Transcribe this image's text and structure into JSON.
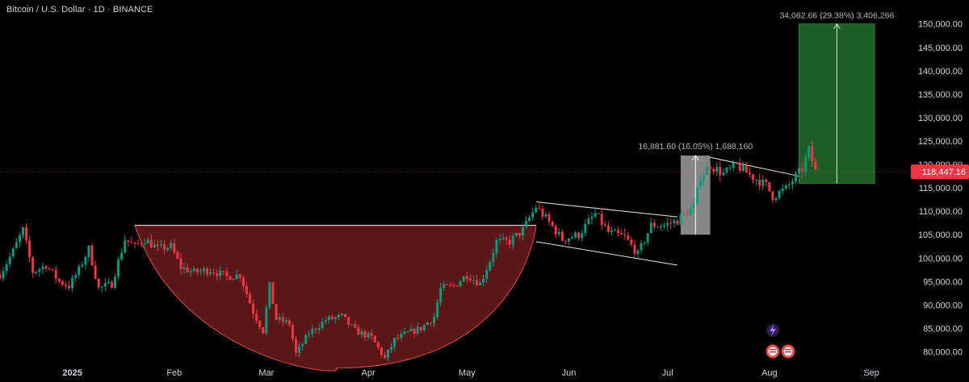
{
  "header": {
    "title": "Bitcoin / U.S. Dollar · 1D · BINANCE"
  },
  "chart_data": {
    "type": "candlestick",
    "symbol": "Bitcoin / U.S. Dollar",
    "interval": "1D",
    "exchange": "BINANCE",
    "ylim": [
      77500,
      151500
    ],
    "y_ticks": [
      "150,000.00",
      "145,000.00",
      "140,000.00",
      "135,000.00",
      "130,000.00",
      "125,000.00",
      "120,000.00",
      "115,000.00",
      "110,000.00",
      "105,000.00",
      "100,000.00",
      "95,000.00",
      "90,000.00",
      "85,000.00",
      "80,000.00"
    ],
    "y_tick_values": [
      150000,
      145000,
      140000,
      135000,
      130000,
      125000,
      120000,
      115000,
      110000,
      105000,
      100000,
      95000,
      90000,
      85000,
      80000
    ],
    "x_ticks": [
      "2025",
      "Feb",
      "Mar",
      "Apr",
      "May",
      "Jun",
      "Jul",
      "Aug",
      "Sep"
    ],
    "x_tick_dates": [
      "2025-01-01",
      "2025-02-01",
      "2025-03-01",
      "2025-04-01",
      "2025-05-01",
      "2025-06-01",
      "2025-07-01",
      "2025-08-01",
      "2025-09-01"
    ],
    "date_start": "2024-12-10",
    "date_end": "2025-09-13",
    "last_price": "118,447.16",
    "last_price_value": 118447.16,
    "colors": {
      "up": "#089981",
      "down": "#f23645",
      "background": "#000000",
      "cup_fill": "#6b1a1c",
      "target_fill": "#1e5e25",
      "range_fill": "#9e9e9e"
    },
    "closes": [
      [
        "2024-12-10",
        96500
      ],
      [
        "2024-12-14",
        101500
      ],
      [
        "2024-12-17",
        106000
      ],
      [
        "2024-12-20",
        97000
      ],
      [
        "2024-12-24",
        98500
      ],
      [
        "2024-12-28",
        95000
      ],
      [
        "2024-12-31",
        94000
      ],
      [
        "2025-01-03",
        97500
      ],
      [
        "2025-01-06",
        102000
      ],
      [
        "2025-01-09",
        93500
      ],
      [
        "2025-01-13",
        94500
      ],
      [
        "2025-01-17",
        104000
      ],
      [
        "2025-01-20",
        102500
      ],
      [
        "2025-01-23",
        104000
      ],
      [
        "2025-01-27",
        102000
      ],
      [
        "2025-01-31",
        102500
      ],
      [
        "2025-02-03",
        98000
      ],
      [
        "2025-02-07",
        97000
      ],
      [
        "2025-02-12",
        97500
      ],
      [
        "2025-02-17",
        96000
      ],
      [
        "2025-02-21",
        96500
      ],
      [
        "2025-02-25",
        88500
      ],
      [
        "2025-02-28",
        84500
      ],
      [
        "2025-03-02",
        94000
      ],
      [
        "2025-03-04",
        87000
      ],
      [
        "2025-03-08",
        86000
      ],
      [
        "2025-03-10",
        79500
      ],
      [
        "2025-03-14",
        84000
      ],
      [
        "2025-03-19",
        86800
      ],
      [
        "2025-03-24",
        87500
      ],
      [
        "2025-03-28",
        84500
      ],
      [
        "2025-04-02",
        83000
      ],
      [
        "2025-04-06",
        78500
      ],
      [
        "2025-04-09",
        82500
      ],
      [
        "2025-04-13",
        84000
      ],
      [
        "2025-04-17",
        85000
      ],
      [
        "2025-04-21",
        87500
      ],
      [
        "2025-04-23",
        93500
      ],
      [
        "2025-04-27",
        94000
      ],
      [
        "2025-05-01",
        96500
      ],
      [
        "2025-05-05",
        94500
      ],
      [
        "2025-05-08",
        99500
      ],
      [
        "2025-05-10",
        103500
      ],
      [
        "2025-05-14",
        103500
      ],
      [
        "2025-05-18",
        106000
      ],
      [
        "2025-05-22",
        111000
      ],
      [
        "2025-05-25",
        108500
      ],
      [
        "2025-05-30",
        104000
      ],
      [
        "2025-06-04",
        105000
      ],
      [
        "2025-06-09",
        109500
      ],
      [
        "2025-06-13",
        105500
      ],
      [
        "2025-06-18",
        104500
      ],
      [
        "2025-06-22",
        100800
      ],
      [
        "2025-06-26",
        107000
      ],
      [
        "2025-06-30",
        107000
      ],
      [
        "2025-07-04",
        108000
      ],
      [
        "2025-07-09",
        111000
      ],
      [
        "2025-07-11",
        117500
      ],
      [
        "2025-07-14",
        119800
      ],
      [
        "2025-07-18",
        118000
      ],
      [
        "2025-07-22",
        119800
      ],
      [
        "2025-07-26",
        117800
      ],
      [
        "2025-07-31",
        115500
      ],
      [
        "2025-08-02",
        113200
      ],
      [
        "2025-08-06",
        114800
      ],
      [
        "2025-08-08",
        116500
      ],
      [
        "2025-08-11",
        119000
      ],
      [
        "2025-08-13",
        123000
      ],
      [
        "2025-08-15",
        118447
      ]
    ],
    "annotations": {
      "flagpole": {
        "label": "16,881.60 (16.05%) 1,688,160",
        "from_date": "2025-07-05",
        "to_date": "2025-07-14",
        "from_price": 105000,
        "to_price": 121900
      },
      "target": {
        "label": "34,062.66 (29.38%) 3,406,266",
        "from_date": "2025-08-10",
        "to_date": "2025-09-02",
        "from_price": 115937,
        "to_price": 150000
      },
      "cup": {
        "rim_price": 107000,
        "bottom_price": 76500,
        "start_date": "2025-01-20",
        "end_date": "2025-05-22"
      },
      "channel": {
        "start_date": "2025-05-22",
        "end_date": "2025-07-04",
        "upper_start": 112000,
        "upper_end": 108800,
        "lower_start": 103500,
        "lower_end": 98500
      },
      "trendline": {
        "start_date": "2025-07-14",
        "end_date": "2025-08-10",
        "start_price": 121500,
        "end_price": 117500
      }
    }
  }
}
